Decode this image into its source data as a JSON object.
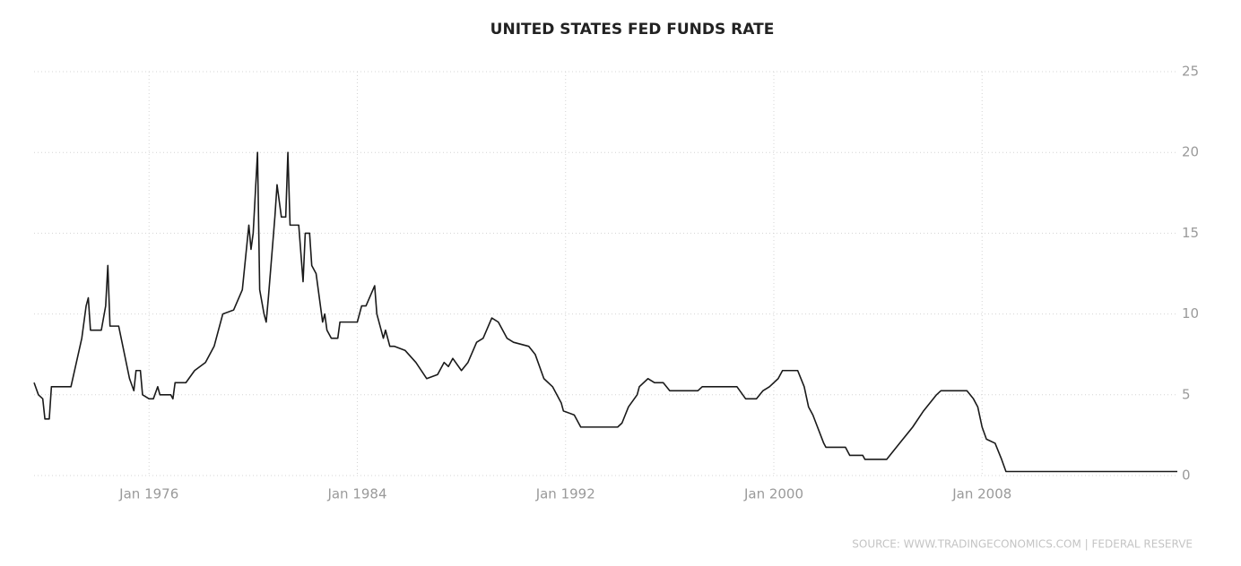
{
  "chart_data": {
    "type": "line",
    "title": "UNITED STATES FED FUNDS RATE",
    "source": "SOURCE: WWW.TRADINGECONOMICS.COM | FEDERAL RESERVE",
    "color": "#1a1a1a",
    "grid": true,
    "y_axis_side": "right",
    "xlim": [
      "1971-08",
      "2015-07"
    ],
    "xticks": [
      {
        "value": "1976-01",
        "label": "Jan 1976"
      },
      {
        "value": "1984-01",
        "label": "Jan 1984"
      },
      {
        "value": "1992-01",
        "label": "Jan 1992"
      },
      {
        "value": "2000-01",
        "label": "Jan 2000"
      },
      {
        "value": "2008-01",
        "label": "Jan 2008"
      }
    ],
    "ylim": [
      0,
      25
    ],
    "yticks": [
      0,
      5,
      10,
      15,
      20,
      25
    ],
    "x": [
      "1971-08",
      "1971-10",
      "1971-12",
      "1972-01",
      "1972-03",
      "1972-04",
      "1973-01",
      "1973-06",
      "1973-08",
      "1973-09",
      "1973-10",
      "1974-03",
      "1974-05",
      "1974-06",
      "1974-07",
      "1974-11",
      "1975-04",
      "1975-06",
      "1975-07",
      "1975-09",
      "1975-10",
      "1976-01",
      "1976-03",
      "1976-05",
      "1976-06",
      "1976-11",
      "1976-12",
      "1977-01",
      "1977-06",
      "1977-10",
      "1978-03",
      "1978-07",
      "1978-11",
      "1979-04",
      "1979-08",
      "1979-11",
      "1979-12",
      "1980-01",
      "1980-03",
      "1980-04",
      "1980-06",
      "1980-07",
      "1980-08",
      "1980-11",
      "1980-12",
      "1981-02",
      "1981-04",
      "1981-05",
      "1981-06",
      "1981-10",
      "1981-12",
      "1982-01",
      "1982-03",
      "1982-04",
      "1982-06",
      "1982-09",
      "1982-10",
      "1982-11",
      "1983-01",
      "1983-04",
      "1983-05",
      "1984-01",
      "1984-03",
      "1984-05",
      "1984-09",
      "1984-10",
      "1985-01",
      "1985-02",
      "1985-04",
      "1985-06",
      "1985-11",
      "1986-04",
      "1986-09",
      "1987-02",
      "1987-05",
      "1987-07",
      "1987-09",
      "1988-01",
      "1988-04",
      "1988-08",
      "1988-11",
      "1989-03",
      "1989-06",
      "1989-10",
      "1990-01",
      "1990-08",
      "1990-11",
      "1991-03",
      "1991-07",
      "1991-11",
      "1991-12",
      "1992-05",
      "1992-08",
      "1994-01",
      "1994-03",
      "1994-06",
      "1994-10",
      "1994-11",
      "1995-03",
      "1995-06",
      "1995-10",
      "1996-01",
      "1997-02",
      "1997-04",
      "1998-08",
      "1998-12",
      "1999-05",
      "1999-08",
      "1999-11",
      "2000-03",
      "2000-05",
      "2000-12",
      "2001-03",
      "2001-05",
      "2001-07",
      "2001-12",
      "2002-01",
      "2002-10",
      "2002-12",
      "2003-06",
      "2003-07",
      "2004-05",
      "2004-11",
      "2005-05",
      "2005-10",
      "2006-04",
      "2006-06",
      "2007-06",
      "2007-09",
      "2007-11",
      "2008-01",
      "2008-03",
      "2008-07",
      "2008-10",
      "2008-12",
      "2015-07"
    ],
    "values": [
      5.75,
      5,
      4.75,
      3.5,
      3.5,
      5.5,
      5.5,
      8.5,
      10.5,
      11,
      9,
      9,
      10.5,
      13,
      9.25,
      9.25,
      6,
      5.25,
      6.5,
      6.5,
      5,
      4.75,
      4.75,
      5.5,
      5,
      5,
      4.75,
      5.75,
      5.75,
      6.5,
      7,
      8,
      10,
      10.25,
      11.5,
      15.5,
      14,
      15,
      20,
      11.5,
      10,
      9.5,
      11,
      16,
      18,
      16,
      16,
      20,
      15.5,
      15.5,
      12,
      15,
      15,
      13,
      12.5,
      9.5,
      10,
      9,
      8.5,
      8.5,
      9.5,
      9.5,
      10.5,
      10.5,
      11.75,
      10,
      8.5,
      9,
      8,
      8,
      7.75,
      7,
      6,
      6.25,
      7,
      6.75,
      7.25,
      6.5,
      7,
      8.25,
      8.5,
      9.75,
      9.5,
      8.5,
      8.25,
      8,
      7.5,
      6,
      5.5,
      4.5,
      4,
      3.75,
      3,
      3,
      3.25,
      4.25,
      5,
      5.5,
      6,
      5.75,
      5.75,
      5.25,
      5.25,
      5.5,
      5.5,
      4.75,
      4.75,
      5.25,
      5.5,
      6,
      6.5,
      6.5,
      5.5,
      4.25,
      3.75,
      2,
      1.75,
      1.75,
      1.25,
      1.25,
      1,
      1,
      2,
      3,
      4,
      5,
      5.25,
      5.25,
      4.75,
      4.25,
      3,
      2.25,
      2,
      1,
      0.25,
      0.25
    ]
  }
}
